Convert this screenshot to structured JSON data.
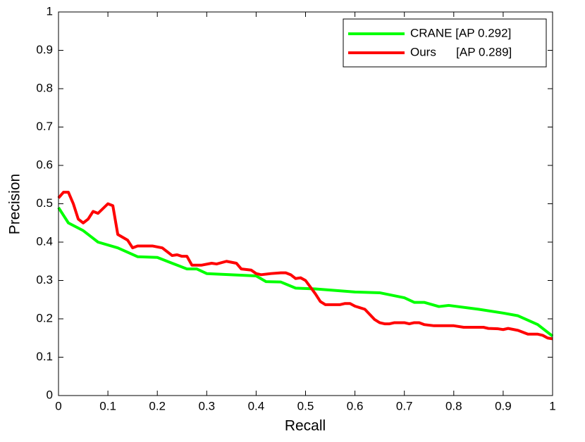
{
  "chart_data": {
    "type": "line",
    "xlabel": "Recall",
    "ylabel": "Precision",
    "xlim": [
      0,
      1
    ],
    "ylim": [
      0,
      1
    ],
    "xticks": [
      0,
      0.1,
      0.2,
      0.3,
      0.4,
      0.5,
      0.6,
      0.7,
      0.8,
      0.9,
      1
    ],
    "yticks": [
      0,
      0.1,
      0.2,
      0.3,
      0.4,
      0.5,
      0.6,
      0.7,
      0.8,
      0.9,
      1
    ],
    "legend": "upper right",
    "series": [
      {
        "name": "CRANE [AP 0.292]",
        "color": "#00ff00",
        "x": [
          0,
          0.01,
          0.02,
          0.05,
          0.08,
          0.12,
          0.16,
          0.2,
          0.23,
          0.26,
          0.28,
          0.3,
          0.35,
          0.4,
          0.42,
          0.45,
          0.48,
          0.52,
          0.55,
          0.6,
          0.65,
          0.7,
          0.72,
          0.74,
          0.77,
          0.79,
          0.85,
          0.9,
          0.93,
          0.97,
          1
        ],
        "values": [
          0.49,
          0.47,
          0.45,
          0.43,
          0.4,
          0.385,
          0.362,
          0.36,
          0.345,
          0.33,
          0.33,
          0.318,
          0.315,
          0.312,
          0.297,
          0.296,
          0.28,
          0.278,
          0.275,
          0.27,
          0.268,
          0.255,
          0.243,
          0.243,
          0.232,
          0.235,
          0.225,
          0.215,
          0.208,
          0.185,
          0.155
        ]
      },
      {
        "name": "Ours      [AP 0.289]",
        "color": "#ff0000",
        "x": [
          0,
          0.01,
          0.02,
          0.03,
          0.04,
          0.05,
          0.06,
          0.07,
          0.08,
          0.1,
          0.11,
          0.12,
          0.14,
          0.15,
          0.16,
          0.19,
          0.21,
          0.23,
          0.24,
          0.25,
          0.26,
          0.27,
          0.29,
          0.31,
          0.32,
          0.34,
          0.36,
          0.37,
          0.39,
          0.4,
          0.41,
          0.43,
          0.45,
          0.46,
          0.47,
          0.48,
          0.49,
          0.5,
          0.52,
          0.53,
          0.54,
          0.57,
          0.58,
          0.59,
          0.6,
          0.62,
          0.64,
          0.65,
          0.66,
          0.67,
          0.68,
          0.7,
          0.71,
          0.72,
          0.73,
          0.74,
          0.76,
          0.8,
          0.82,
          0.86,
          0.87,
          0.89,
          0.9,
          0.91,
          0.93,
          0.95,
          0.97,
          0.98,
          0.99,
          1
        ],
        "values": [
          0.515,
          0.53,
          0.53,
          0.5,
          0.46,
          0.45,
          0.46,
          0.48,
          0.475,
          0.5,
          0.495,
          0.42,
          0.405,
          0.385,
          0.39,
          0.39,
          0.385,
          0.365,
          0.367,
          0.363,
          0.363,
          0.34,
          0.34,
          0.345,
          0.343,
          0.35,
          0.345,
          0.33,
          0.327,
          0.318,
          0.315,
          0.318,
          0.32,
          0.32,
          0.315,
          0.305,
          0.307,
          0.3,
          0.265,
          0.245,
          0.237,
          0.237,
          0.24,
          0.24,
          0.233,
          0.225,
          0.198,
          0.19,
          0.187,
          0.187,
          0.19,
          0.19,
          0.187,
          0.19,
          0.19,
          0.185,
          0.182,
          0.182,
          0.178,
          0.178,
          0.175,
          0.174,
          0.172,
          0.175,
          0.17,
          0.16,
          0.16,
          0.157,
          0.15,
          0.148
        ]
      }
    ]
  }
}
